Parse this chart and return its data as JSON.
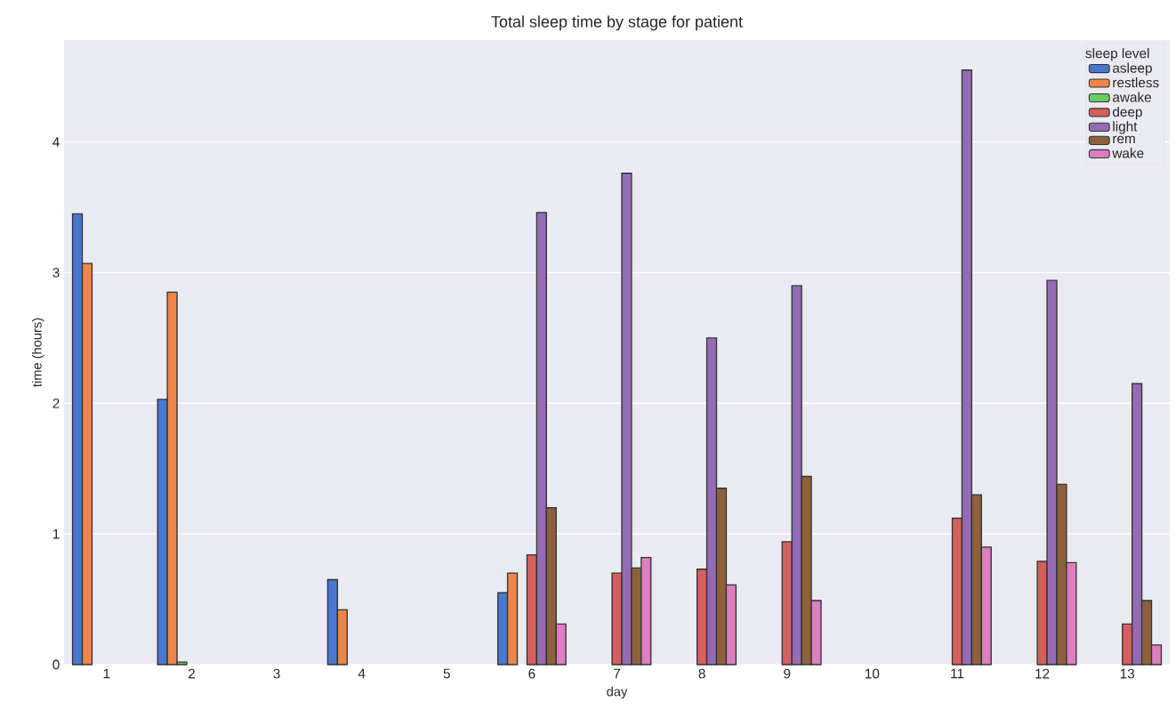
{
  "chart_data": {
    "type": "bar",
    "title": "Total sleep time by stage for patient",
    "xlabel": "day",
    "ylabel": "time (hours)",
    "legend_title": "sleep level",
    "categories": [
      "1",
      "2",
      "3",
      "4",
      "5",
      "6",
      "7",
      "8",
      "9",
      "10",
      "11",
      "12",
      "13"
    ],
    "series": [
      {
        "name": "asleep",
        "color": "#4878d0",
        "values": [
          3.45,
          2.03,
          null,
          0.65,
          null,
          0.55,
          null,
          null,
          null,
          null,
          null,
          null,
          null
        ]
      },
      {
        "name": "restless",
        "color": "#ee854a",
        "values": [
          3.07,
          2.85,
          null,
          0.42,
          null,
          0.7,
          null,
          null,
          null,
          null,
          null,
          null,
          null
        ]
      },
      {
        "name": "awake",
        "color": "#6acc64",
        "values": [
          null,
          0.02,
          null,
          null,
          null,
          null,
          null,
          null,
          null,
          null,
          null,
          null,
          null
        ]
      },
      {
        "name": "deep",
        "color": "#d65f5f",
        "values": [
          null,
          null,
          null,
          null,
          null,
          0.84,
          0.7,
          0.73,
          0.94,
          null,
          1.12,
          0.79,
          0.31
        ]
      },
      {
        "name": "light",
        "color": "#956cb4",
        "values": [
          null,
          null,
          null,
          null,
          null,
          3.46,
          3.76,
          2.5,
          2.9,
          null,
          4.55,
          2.94,
          2.15
        ]
      },
      {
        "name": "rem",
        "color": "#8c613c",
        "values": [
          null,
          null,
          null,
          null,
          null,
          1.2,
          0.74,
          1.35,
          1.44,
          null,
          1.3,
          1.38,
          0.49
        ]
      },
      {
        "name": "wake",
        "color": "#dc7ec0",
        "values": [
          null,
          null,
          null,
          null,
          null,
          0.31,
          0.82,
          0.61,
          0.49,
          null,
          0.9,
          0.78,
          0.15
        ]
      }
    ],
    "ylim": [
      0,
      4.78
    ],
    "yticks": [
      0,
      1,
      2,
      3,
      4
    ],
    "grid": "y",
    "legend": "top right"
  }
}
